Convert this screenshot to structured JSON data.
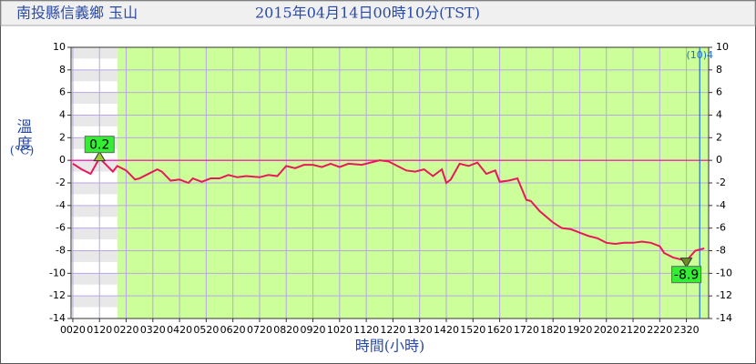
{
  "chart_data": {
    "type": "line",
    "title": "南投縣信義鄉 玉山",
    "subtitle": "2015年04月14日00時10分(TST)",
    "y_label": "溫度",
    "y_unit": "(°C)",
    "x_label": "時間(小時)",
    "marker_annotation": "(10)4",
    "marker_x": 1430,
    "band": {
      "from": 120,
      "color": "#ccff99"
    },
    "zero_line_color": "#ff00aa",
    "grid": true,
    "x": [
      20,
      40,
      60,
      80,
      90,
      110,
      120,
      140,
      160,
      170,
      190,
      210,
      220,
      240,
      260,
      280,
      290,
      310,
      330,
      350,
      370,
      390,
      410,
      440,
      460,
      480,
      500,
      520,
      540,
      560,
      580,
      600,
      620,
      640,
      670,
      690,
      710,
      730,
      750,
      770,
      790,
      810,
      830,
      850,
      860,
      870,
      890,
      910,
      930,
      950,
      970,
      980,
      1000,
      1020,
      1040,
      1050,
      1070,
      1100,
      1120,
      1140,
      1160,
      1180,
      1200,
      1220,
      1240,
      1260,
      1280,
      1300,
      1320,
      1340,
      1350,
      1370,
      1400,
      1420,
      1440
    ],
    "series": [
      {
        "color": "#e8185a",
        "values": [
          -0.3,
          -0.8,
          -1.2,
          0.2,
          -0.2,
          -1.0,
          -0.5,
          -0.9,
          -1.7,
          -1.6,
          -1.2,
          -0.8,
          -1.0,
          -1.8,
          -1.7,
          -2.0,
          -1.6,
          -1.9,
          -1.6,
          -1.6,
          -1.3,
          -1.5,
          -1.4,
          -1.5,
          -1.3,
          -1.4,
          -0.5,
          -0.7,
          -0.4,
          -0.4,
          -0.6,
          -0.3,
          -0.6,
          -0.3,
          -0.4,
          -0.2,
          0.0,
          -0.1,
          -0.5,
          -0.9,
          -1.0,
          -0.8,
          -1.4,
          -0.8,
          -2.0,
          -1.7,
          -0.3,
          -0.5,
          -0.2,
          -1.2,
          -0.9,
          -1.9,
          -1.8,
          -1.6,
          -3.5,
          -3.6,
          -4.5,
          -5.5,
          -6.0,
          -6.1,
          -6.4,
          -6.7,
          -6.9,
          -7.3,
          -7.4,
          -7.3,
          -7.3,
          -7.2,
          -7.3,
          -7.6,
          -8.2,
          -8.6,
          -8.9,
          -8.0,
          -7.8
        ]
      }
    ],
    "xlim": [
      16,
      1450
    ],
    "ylim": [
      -14,
      10
    ],
    "yticks": [
      10,
      8,
      6,
      4,
      2,
      0,
      -2,
      -4,
      -6,
      -8,
      -10,
      -12,
      -14
    ],
    "xticks": [
      {
        "value": 20,
        "label": "0020"
      },
      {
        "value": 80,
        "label": "0120"
      },
      {
        "value": 140,
        "label": "0220"
      },
      {
        "value": 200,
        "label": "0320"
      },
      {
        "value": 260,
        "label": "0420"
      },
      {
        "value": 320,
        "label": "0520"
      },
      {
        "value": 380,
        "label": "0620"
      },
      {
        "value": 440,
        "label": "0720"
      },
      {
        "value": 500,
        "label": "0820"
      },
      {
        "value": 560,
        "label": "0920"
      },
      {
        "value": 620,
        "label": "1020"
      },
      {
        "value": 680,
        "label": "1120"
      },
      {
        "value": 740,
        "label": "1220"
      },
      {
        "value": 800,
        "label": "1320"
      },
      {
        "value": 860,
        "label": "1420"
      },
      {
        "value": 920,
        "label": "1520"
      },
      {
        "value": 980,
        "label": "1620"
      },
      {
        "value": 1040,
        "label": "1720"
      },
      {
        "value": 1100,
        "label": "1820"
      },
      {
        "value": 1160,
        "label": "1920"
      },
      {
        "value": 1220,
        "label": "2020"
      },
      {
        "value": 1280,
        "label": "2120"
      },
      {
        "value": 1340,
        "label": "2220"
      },
      {
        "value": 1400,
        "label": "2320"
      }
    ]
  }
}
